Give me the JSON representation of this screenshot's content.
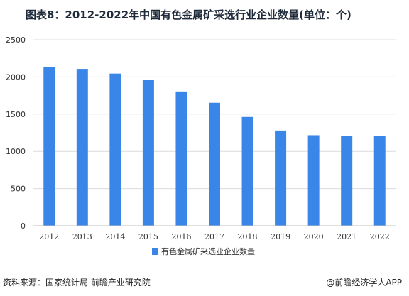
{
  "title": "图表8：2012-2022年中国有色金属矿采选行业企业数量(单位：个)",
  "source": "资料来源：国家统计局 前瞻产业研究院",
  "credit": "@前瞻经济学人APP",
  "colors": {
    "bar": "#3a86e8",
    "grid": "#dcdcdc",
    "axis": "#bfbfbf",
    "tick_text": "#333333"
  },
  "chart_data": {
    "type": "bar",
    "title": "图表8：2012-2022年中国有色金属矿采选行业企业数量(单位：个)",
    "xlabel": "",
    "ylabel": "",
    "categories": [
      "2012",
      "2013",
      "2014",
      "2015",
      "2016",
      "2017",
      "2018",
      "2019",
      "2020",
      "2021",
      "2022"
    ],
    "series": [
      {
        "name": "有色金属矿采选业企业数量",
        "values": [
          2130,
          2108,
          2045,
          1957,
          1805,
          1653,
          1462,
          1280,
          1217,
          1210,
          1210
        ]
      }
    ],
    "ylim": [
      0,
      2500
    ],
    "yticks": [
      0,
      500,
      1000,
      1500,
      2000,
      2500
    ],
    "grid": true,
    "legend_position": "bottom"
  }
}
